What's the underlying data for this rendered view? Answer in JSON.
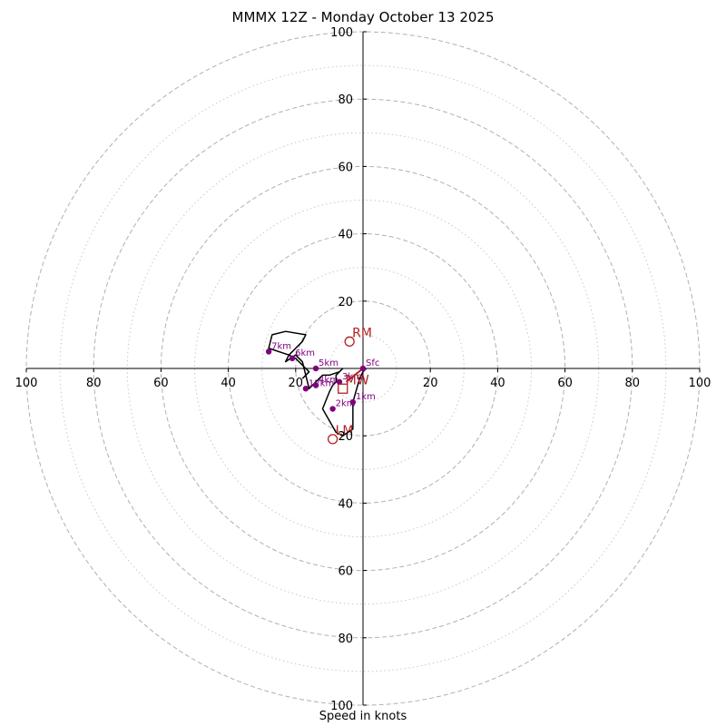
{
  "chart_data": {
    "type": "hodograph",
    "title": "MMMX 12Z - Monday October 13 2025",
    "xlabel": "Speed in knots",
    "units": "knots",
    "range": [
      -100,
      100
    ],
    "rings_major": [
      20,
      40,
      60,
      80,
      100
    ],
    "rings_minor": [
      10,
      30,
      50,
      70,
      90
    ],
    "x_tick_labels": [
      "100",
      "80",
      "60",
      "40",
      "20",
      "20",
      "40",
      "60",
      "80",
      "100"
    ],
    "x_tick_values": [
      -100,
      -80,
      -60,
      -40,
      -20,
      20,
      40,
      60,
      80,
      100
    ],
    "y_tick_labels": [
      "100",
      "80",
      "60",
      "40",
      "20",
      "20",
      "40",
      "60",
      "80",
      "100"
    ],
    "y_tick_values": [
      100,
      80,
      60,
      40,
      20,
      -20,
      -40,
      -60,
      -80,
      -100
    ],
    "trace_color": "#000000",
    "marker_color": "#800080",
    "motion_color": "#b22222",
    "trace": [
      [
        1,
        0
      ],
      [
        0,
        -1
      ],
      [
        -1,
        -3
      ],
      [
        -3,
        -10
      ],
      [
        -3,
        -18
      ],
      [
        -6,
        -20
      ],
      [
        -8,
        -19
      ],
      [
        -12,
        -12
      ],
      [
        -10,
        -7
      ],
      [
        -9,
        -5
      ],
      [
        -8,
        -4
      ],
      [
        -8,
        -2
      ],
      [
        -6,
        0
      ],
      [
        -7,
        -1
      ],
      [
        -10,
        -2
      ],
      [
        -12,
        -2
      ],
      [
        -14,
        -4
      ],
      [
        -15,
        -5
      ],
      [
        -16,
        -6
      ],
      [
        -17,
        -2
      ],
      [
        -18,
        2
      ],
      [
        -20,
        4
      ],
      [
        -23,
        2
      ],
      [
        -22,
        4
      ],
      [
        -20,
        6
      ],
      [
        -18,
        8
      ],
      [
        -17,
        10
      ],
      [
        -23,
        11
      ],
      [
        -27,
        10
      ],
      [
        -28,
        6
      ],
      [
        -22,
        4
      ],
      [
        -20,
        3
      ],
      [
        -18,
        1
      ],
      [
        -17,
        0
      ],
      [
        -16,
        -1
      ],
      [
        -17,
        -2
      ],
      [
        -18,
        -3
      ]
    ],
    "height_markers": [
      {
        "label": "Sfc",
        "u": 0,
        "v": 0
      },
      {
        "label": "1km",
        "u": -3,
        "v": -10
      },
      {
        "label": "2km",
        "u": -9,
        "v": -12
      },
      {
        "label": "3km",
        "u": -7,
        "v": -4
      },
      {
        "label": "4km",
        "u": -14,
        "v": -5
      },
      {
        "label": "5km",
        "u": -14,
        "v": 0
      },
      {
        "label": "6km",
        "u": -21,
        "v": 3
      },
      {
        "label": "7km",
        "u": -28,
        "v": 5
      },
      {
        "label": "12km",
        "u": -17,
        "v": -6
      }
    ],
    "storm_motion": [
      {
        "label": "RM",
        "u": -4,
        "v": 8
      },
      {
        "label": "LM",
        "u": -9,
        "v": -21
      }
    ],
    "mean_wind": {
      "label": "MW",
      "u": -6,
      "v": -6
    },
    "shear_vector": {
      "from": [
        0,
        0
      ],
      "to": [
        -5,
        -4
      ]
    }
  }
}
